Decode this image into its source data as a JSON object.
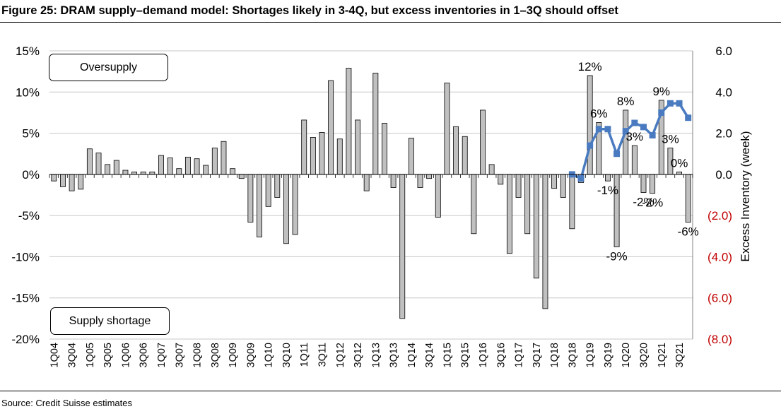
{
  "title": "Figure 25: DRAM supply–demand model: Shortages likely in 3-4Q, but excess inventories in 1–3Q should offset",
  "source": "Source: Credit Suisse estimates",
  "annotations": {
    "oversupply": "Oversupply",
    "shortage": "Supply shortage"
  },
  "colors": {
    "bars": "#c0c0c0",
    "bar_outline": "#000000",
    "line": "#4a7bc0",
    "negative_right_ticks": "#c00000",
    "grid": "#c8c8c8"
  },
  "chart_data": {
    "type": "bar+line",
    "categories": [
      "1Q04",
      "2Q04",
      "3Q04",
      "4Q04",
      "1Q05",
      "2Q05",
      "3Q05",
      "4Q05",
      "1Q06",
      "2Q06",
      "3Q06",
      "4Q06",
      "1Q07",
      "2Q07",
      "3Q07",
      "4Q07",
      "1Q08",
      "2Q08",
      "3Q08",
      "4Q08",
      "1Q09",
      "2Q09",
      "3Q09",
      "4Q09",
      "1Q10",
      "2Q10",
      "3Q10",
      "4Q10",
      "1Q11",
      "2Q11",
      "3Q11",
      "4Q11",
      "1Q12",
      "2Q12",
      "3Q12",
      "4Q12",
      "1Q13",
      "2Q13",
      "3Q13",
      "4Q13",
      "1Q14",
      "2Q14",
      "3Q14",
      "4Q14",
      "1Q15",
      "2Q15",
      "3Q15",
      "4Q15",
      "1Q16",
      "2Q16",
      "3Q16",
      "4Q16",
      "1Q17",
      "2Q17",
      "3Q17",
      "4Q17",
      "1Q18",
      "2Q18",
      "3Q18",
      "4Q18",
      "1Q19",
      "2Q19",
      "3Q19",
      "4Q19",
      "1Q20",
      "2Q20",
      "3Q20",
      "4Q20",
      "1Q21",
      "2Q21",
      "3Q21",
      "4Q21"
    ],
    "x_tick_labels": [
      "1Q04",
      "3Q04",
      "1Q05",
      "3Q05",
      "1Q06",
      "3Q06",
      "1Q07",
      "3Q07",
      "1Q08",
      "3Q08",
      "1Q09",
      "3Q09",
      "1Q10",
      "3Q10",
      "1Q11",
      "3Q11",
      "1Q12",
      "3Q12",
      "1Q13",
      "3Q13",
      "1Q14",
      "3Q14",
      "1Q15",
      "3Q15",
      "1Q16",
      "3Q16",
      "1Q17",
      "3Q17",
      "1Q18",
      "3Q18",
      "1Q19",
      "3Q19",
      "1Q20",
      "3Q20",
      "1Q21",
      "3Q21"
    ],
    "bar_series": {
      "values": [
        -0.8,
        -1.5,
        -2.0,
        -1.8,
        3.1,
        2.6,
        1.2,
        1.7,
        0.5,
        0.3,
        0.3,
        0.3,
        2.3,
        2.0,
        0.7,
        2.1,
        1.9,
        1.1,
        3.2,
        4.0,
        0.7,
        -0.5,
        -5.8,
        -7.6,
        -3.9,
        -2.8,
        -8.4,
        -7.3,
        6.6,
        4.5,
        5.1,
        11.4,
        4.3,
        12.9,
        6.6,
        -2.0,
        12.3,
        6.2,
        -1.6,
        -17.5,
        4.4,
        -1.6,
        -0.5,
        -5.2,
        11.1,
        5.8,
        4.6,
        -7.2,
        7.8,
        1.2,
        -1.2,
        -9.6,
        -2.8,
        -7.2,
        -12.6,
        -16.3,
        -1.7,
        -2.8,
        -6.6,
        -1.0,
        12.0,
        6.3,
        -0.8,
        -8.8,
        7.8,
        3.5,
        -2.2,
        -2.3,
        9.0,
        3.2,
        0.3,
        -5.8
      ]
    },
    "line_series": {
      "x_start_index": 58,
      "values": [
        0.0,
        -0.2,
        1.4,
        2.2,
        2.2,
        1.0,
        2.1,
        2.5,
        2.3,
        1.9,
        3.0,
        3.45,
        3.45,
        2.75
      ]
    },
    "data_labels": [
      {
        "text": "12%",
        "index": 60
      },
      {
        "text": "6%",
        "index": 61
      },
      {
        "text": "-1%",
        "index": 62
      },
      {
        "text": "-9%",
        "index": 63
      },
      {
        "text": "8%",
        "index": 64
      },
      {
        "text": "3%",
        "index": 65
      },
      {
        "text": "-2%",
        "index": 66
      },
      {
        "text": "-2%",
        "index": 67
      },
      {
        "text": "9%",
        "index": 68
      },
      {
        "text": "3%",
        "index": 69
      },
      {
        "text": "0%",
        "index": 70
      },
      {
        "text": "-6%",
        "index": 71
      }
    ],
    "left_axis": {
      "ylim": [
        -20,
        15
      ],
      "ticks": [
        "15%",
        "10%",
        "5%",
        "0%",
        "-5%",
        "-10%",
        "-15%",
        "-20%"
      ],
      "tick_values": [
        15,
        10,
        5,
        0,
        -5,
        -10,
        -15,
        -20
      ]
    },
    "right_axis": {
      "ylim": [
        -8,
        6
      ],
      "ylabel": "Excess Inventory (week)",
      "ticks": [
        "6.0",
        "4.0",
        "2.0",
        "0.0",
        "(2.0)",
        "(4.0)",
        "(6.0)",
        "(8.0)"
      ],
      "tick_values": [
        6,
        4,
        2,
        0,
        -2,
        -4,
        -6,
        -8
      ]
    },
    "grid": true
  }
}
